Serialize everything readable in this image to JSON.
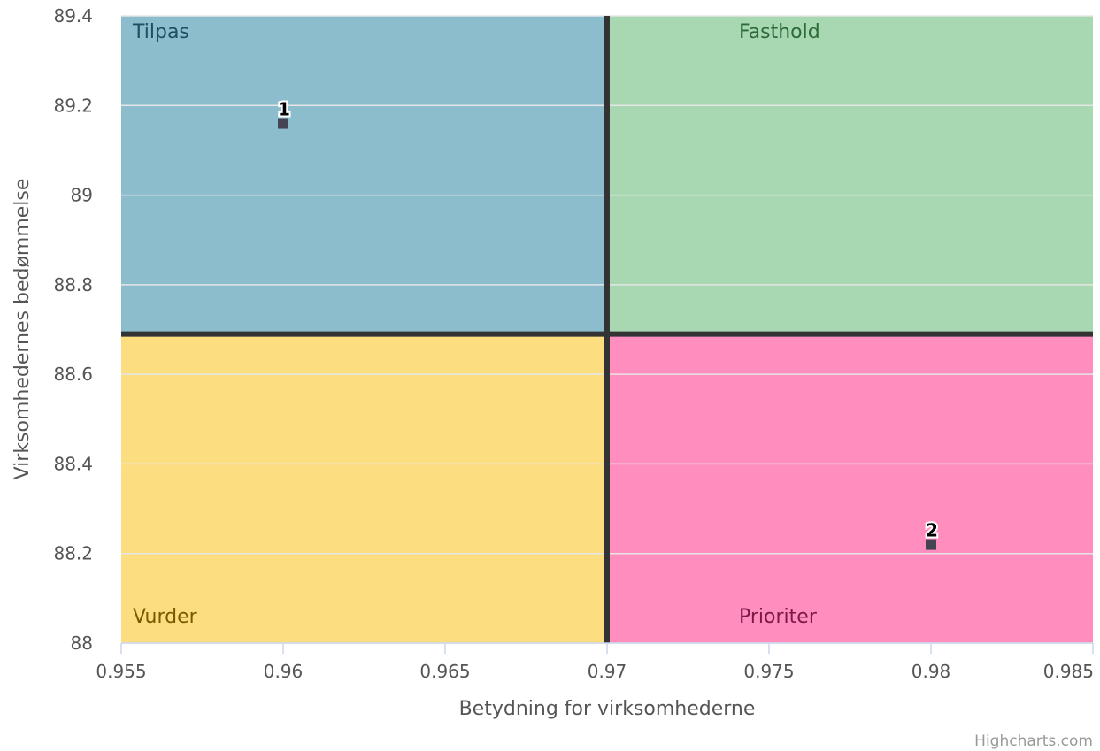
{
  "chart_data": {
    "type": "scatter",
    "title": "",
    "xlabel": "Betydning for virksomhederne",
    "ylabel": "Virksomhedernes bedømmelse",
    "xlim": [
      0.955,
      0.985
    ],
    "ylim": [
      88,
      89.4
    ],
    "x_ticks": [
      0.955,
      0.96,
      0.965,
      0.97,
      0.975,
      0.98,
      0.985
    ],
    "x_tick_labels": [
      "0.955",
      "0.96",
      "0.965",
      "0.97",
      "0.975",
      "0.98",
      "0.985"
    ],
    "y_ticks": [
      88,
      88.2,
      88.4,
      88.6,
      88.8,
      89,
      89.2,
      89.4
    ],
    "y_tick_labels": [
      "88",
      "88.2",
      "88.4",
      "88.6",
      "88.8",
      "89",
      "89.2",
      "89.4"
    ],
    "grid": true,
    "divider": {
      "x": 0.97,
      "y": 88.69
    },
    "quadrants": [
      {
        "label": "Tilpas",
        "position": "top-left",
        "fill": "#8bbdcc",
        "text_color": "#1d4e63"
      },
      {
        "label": "Fasthold",
        "position": "top-right",
        "fill": "#a7d8b1",
        "text_color": "#2e6a38"
      },
      {
        "label": "Vurder",
        "position": "bottom-left",
        "fill": "#fcde81",
        "text_color": "#7a5a00"
      },
      {
        "label": "Prioriter",
        "position": "bottom-right",
        "fill": "#ff8dbe",
        "text_color": "#7a1a45"
      }
    ],
    "points": [
      {
        "label": "1",
        "x": 0.96,
        "y": 89.16
      },
      {
        "label": "2",
        "x": 0.98,
        "y": 88.22
      }
    ],
    "marker_color": "#444455",
    "divider_color": "#333333"
  },
  "credits": "Highcharts.com"
}
